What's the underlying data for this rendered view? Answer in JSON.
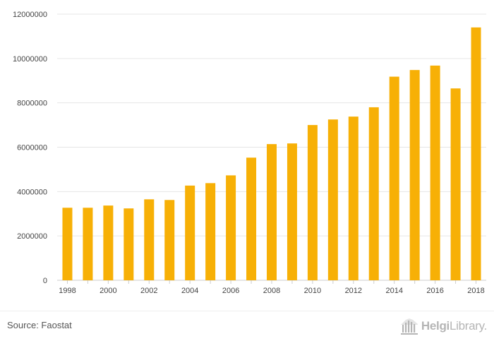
{
  "chart_data": {
    "type": "bar",
    "title": "",
    "xlabel": "",
    "ylabel": "",
    "ylim": [
      0,
      12000000
    ],
    "yticks": [
      0,
      2000000,
      4000000,
      6000000,
      8000000,
      10000000,
      12000000
    ],
    "ytick_labels": [
      "0",
      "2000000",
      "4000000",
      "6000000",
      "8000000",
      "10000000",
      "12000000"
    ],
    "xtick_labels": [
      "1998",
      "2000",
      "2002",
      "2004",
      "2006",
      "2008",
      "2010",
      "2012",
      "2014",
      "2016",
      "2018"
    ],
    "grid": true,
    "categories": [
      "1998",
      "1999",
      "2000",
      "2001",
      "2002",
      "2003",
      "2004",
      "2005",
      "2006",
      "2007",
      "2008",
      "2009",
      "2010",
      "2011",
      "2012",
      "2013",
      "2014",
      "2015",
      "2016",
      "2017",
      "2018"
    ],
    "values": [
      3270000,
      3270000,
      3370000,
      3240000,
      3650000,
      3620000,
      4270000,
      4380000,
      4730000,
      5530000,
      6140000,
      6170000,
      7000000,
      7250000,
      7380000,
      7800000,
      9180000,
      9480000,
      9680000,
      8650000,
      11400000
    ],
    "bar_color": "#f7b006"
  },
  "footer": {
    "source": "Source: Faostat",
    "brand_primary": "Helgi",
    "brand_secondary": "Library."
  },
  "colors": {
    "bar": "#f7b006",
    "grid": "#e6e6e6",
    "axis": "#cccccc",
    "brand": "#b5b5b5"
  }
}
